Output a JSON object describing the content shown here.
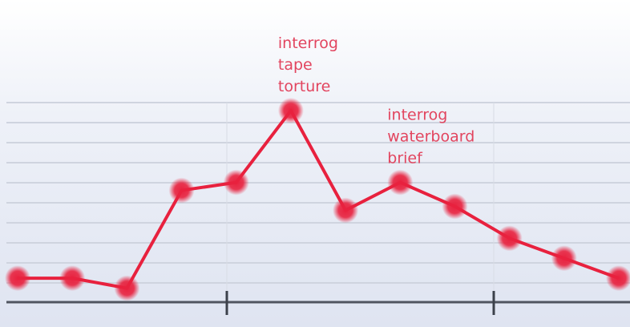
{
  "chart_data": {
    "type": "line",
    "title": "",
    "xlabel": "",
    "ylabel": "",
    "x": [
      0,
      1,
      2,
      3,
      4,
      5,
      6,
      7,
      8,
      9,
      10,
      11
    ],
    "series": [
      {
        "values": [
          1.2,
          1.2,
          0.7,
          5.6,
          6.0,
          9.6,
          4.6,
          6.0,
          4.8,
          3.2,
          2.2,
          1.2
        ]
      }
    ],
    "ylim": [
      0,
      10
    ],
    "grid": true,
    "line_color": "#e8213e",
    "annotation_color": "#e2455f",
    "annotations": [
      {
        "point_index": 5,
        "lines": [
          "interrog",
          "tape",
          "torture"
        ]
      },
      {
        "point_index": 7,
        "lines": [
          "interrog",
          "waterboard",
          "brief"
        ]
      }
    ]
  }
}
